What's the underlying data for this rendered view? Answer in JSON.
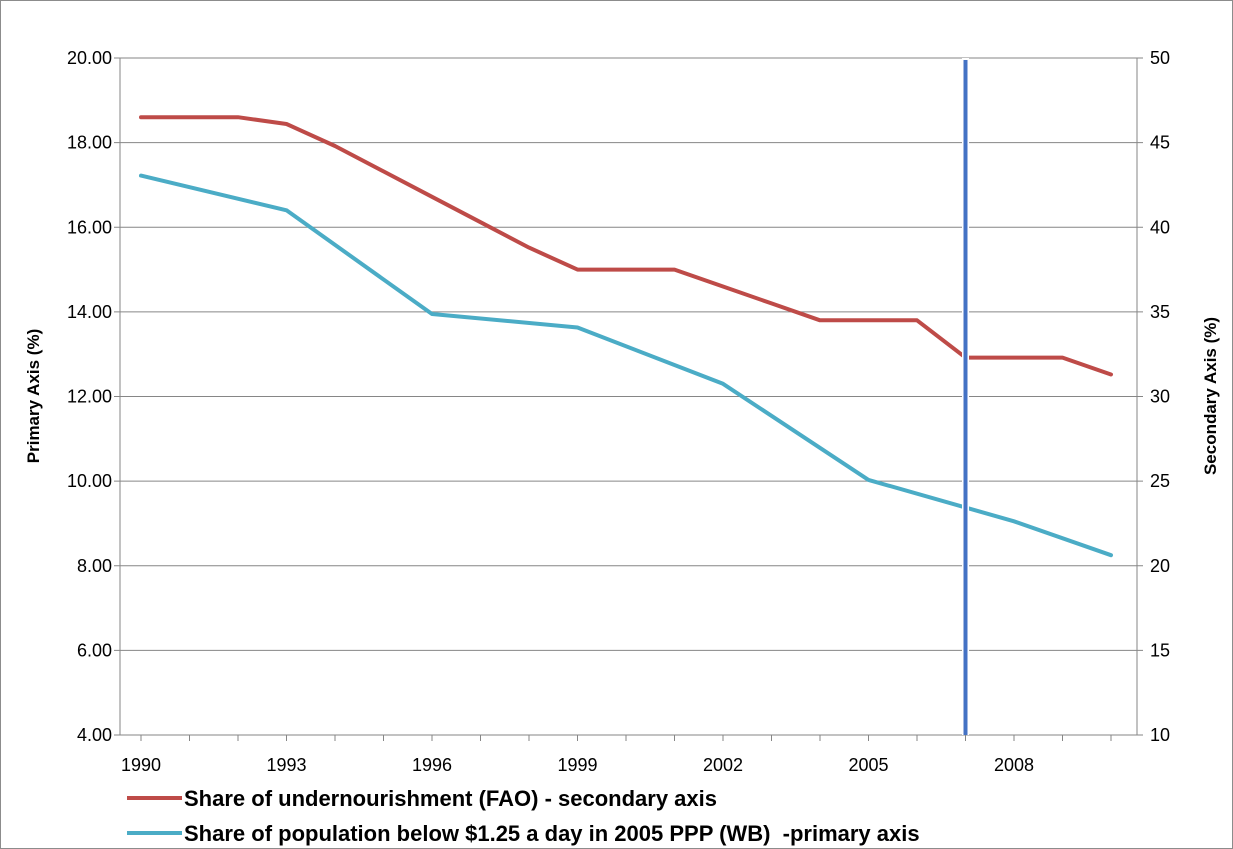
{
  "chart_data": {
    "type": "line",
    "title": "",
    "x_tick_labels": [
      "1990",
      "1993",
      "1996",
      "1999",
      "2002",
      "2005",
      "2008"
    ],
    "xlim": [
      1990,
      2011
    ],
    "y_primary": {
      "label": "Primary Axis (%)",
      "ylim": [
        4,
        20
      ],
      "tick_labels": [
        "4.00",
        "6.00",
        "8.00",
        "10.00",
        "12.00",
        "14.00",
        "16.00",
        "18.00",
        "20.00"
      ]
    },
    "y_secondary": {
      "label": "Secondary Axis (%)",
      "ylim": [
        10,
        50
      ],
      "tick_labels": [
        "10",
        "15",
        "20",
        "25",
        "30",
        "35",
        "40",
        "45",
        "50"
      ]
    },
    "grid": "horizontal",
    "legend_position": "bottom",
    "series": [
      {
        "name": "Share of undernourishment (FAO) - secondary axis",
        "axis": "secondary",
        "color": "#be4b48",
        "x": [
          1990,
          1991,
          1992,
          1993,
          1994,
          1995,
          1996,
          1997,
          1998,
          1999,
          2000,
          2001,
          2002,
          2003,
          2004,
          2005,
          2006,
          2007,
          2008,
          2009,
          2010
        ],
        "values": [
          46.5,
          46.5,
          46.5,
          46.1,
          44.8,
          43.3,
          41.8,
          40.3,
          38.8,
          37.5,
          37.5,
          37.5,
          36.5,
          35.5,
          34.5,
          34.5,
          34.5,
          32.3,
          32.3,
          32.3,
          31.3
        ]
      },
      {
        "name": "Share of population below $1.25 a day in 2005 PPP (WB)  -primary axis",
        "axis": "primary",
        "color": "#4bacc6",
        "x": [
          1990,
          1993,
          1996,
          1999,
          2002,
          2005,
          2008,
          2010
        ],
        "values": [
          17.22,
          16.4,
          13.95,
          13.63,
          12.3,
          10.03,
          9.05,
          8.25
        ]
      }
    ],
    "reference_line": {
      "x": 2007,
      "color": "#4472c4"
    }
  }
}
